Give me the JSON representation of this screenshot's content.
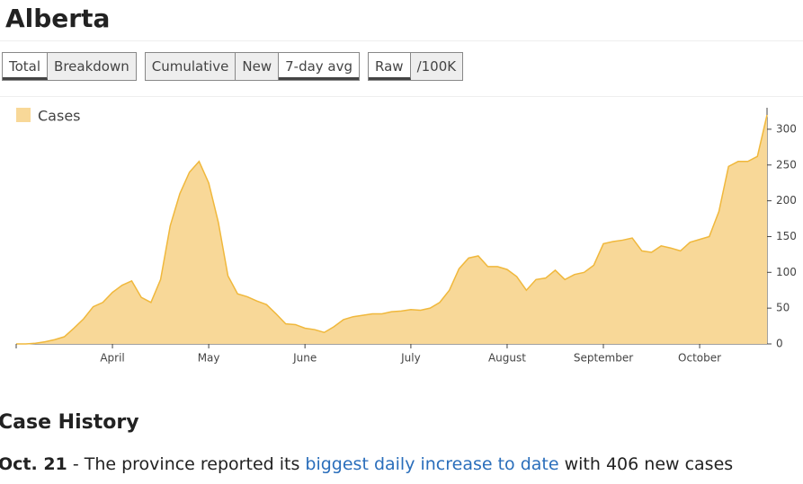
{
  "title": "Alberta",
  "button_groups": [
    [
      "Total",
      "Breakdown"
    ],
    [
      "Cumulative",
      "New",
      "7-day avg"
    ],
    [
      "Raw",
      "/100K"
    ]
  ],
  "chart_data": {
    "type": "area",
    "categories": [
      null,
      null,
      null,
      null,
      null,
      null,
      null,
      null,
      null,
      null,
      "April",
      null,
      null,
      null,
      null,
      null,
      null,
      null,
      null,
      null,
      "May",
      null,
      null,
      null,
      null,
      null,
      null,
      null,
      null,
      null,
      "June",
      null,
      null,
      null,
      null,
      null,
      null,
      null,
      null,
      null,
      null,
      "July",
      null,
      null,
      null,
      null,
      null,
      null,
      null,
      null,
      null,
      "August",
      null,
      null,
      null,
      null,
      null,
      null,
      null,
      null,
      null,
      "September",
      null,
      null,
      null,
      null,
      null,
      null,
      null,
      null,
      null,
      "October",
      null,
      null,
      null,
      null,
      null,
      null,
      null
    ],
    "series": [
      {
        "name": "Cases",
        "color": "#f8d898",
        "values": [
          0,
          0,
          1,
          3,
          6,
          10,
          22,
          35,
          52,
          58,
          72,
          82,
          88,
          65,
          58,
          90,
          165,
          210,
          240,
          255,
          225,
          170,
          95,
          70,
          66,
          60,
          55,
          42,
          28,
          27,
          22,
          20,
          16,
          24,
          34,
          38,
          40,
          42,
          42,
          45,
          46,
          48,
          47,
          50,
          58,
          75,
          105,
          120,
          123,
          108,
          108,
          104,
          94,
          75,
          90,
          92,
          103,
          90,
          97,
          100,
          110,
          140,
          143,
          145,
          148,
          130,
          128,
          137,
          134,
          130,
          142,
          146,
          150,
          185,
          248,
          255,
          255,
          262,
          320
        ]
      }
    ],
    "ylim": [
      0,
      330
    ],
    "yticks": [
      0,
      50,
      100,
      150,
      200,
      250,
      300
    ]
  },
  "case_history": {
    "heading": "Case History",
    "entries": [
      {
        "date": "Oct. 21",
        "text": " - The province reported its ",
        "link": "biggest daily increase to date",
        "rest": " with 406 new cases"
      }
    ]
  }
}
